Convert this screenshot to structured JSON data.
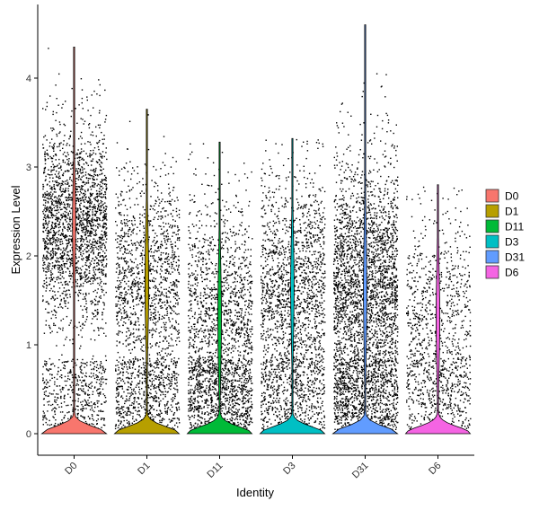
{
  "chart_data": {
    "type": "violin",
    "xlabel": "Identity",
    "ylabel": "Expression Level",
    "ylim": [
      -0.25,
      4.7
    ],
    "y_ticks": [
      0,
      1,
      2,
      3,
      4
    ],
    "grid": false,
    "legend_position": "right",
    "point_color": "#000000",
    "groups": [
      {
        "name": "D0",
        "color": "#F8766D",
        "max": 4.35,
        "zero_density": 1.0,
        "n_points": 2600,
        "mode": 2.35,
        "spread": 0.55,
        "tail_frac": 0.18
      },
      {
        "name": "D1",
        "color": "#B79F00",
        "max": 3.65,
        "zero_density": 0.85,
        "n_points": 1900,
        "mode": 1.7,
        "spread": 0.65,
        "tail_frac": 0.3
      },
      {
        "name": "D11",
        "color": "#00BA38",
        "max": 3.28,
        "zero_density": 0.9,
        "n_points": 2100,
        "mode": 1.3,
        "spread": 0.7,
        "tail_frac": 0.32
      },
      {
        "name": "D3",
        "color": "#00BFC4",
        "max": 3.32,
        "zero_density": 0.95,
        "n_points": 2100,
        "mode": 1.65,
        "spread": 0.65,
        "tail_frac": 0.25
      },
      {
        "name": "D31",
        "color": "#619CFF",
        "max": 4.6,
        "zero_density": 0.95,
        "n_points": 3400,
        "mode": 1.6,
        "spread": 0.75,
        "tail_frac": 0.2
      },
      {
        "name": "D6",
        "color": "#F564E3",
        "max": 2.8,
        "zero_density": 0.9,
        "n_points": 1100,
        "mode": 1.3,
        "spread": 0.65,
        "tail_frac": 0.3
      }
    ]
  },
  "legend": {
    "items": [
      {
        "label": "D0",
        "color": "#F8766D"
      },
      {
        "label": "D1",
        "color": "#B79F00"
      },
      {
        "label": "D11",
        "color": "#00BA38"
      },
      {
        "label": "D3",
        "color": "#00BFC4"
      },
      {
        "label": "D31",
        "color": "#619CFF"
      },
      {
        "label": "D6",
        "color": "#F564E3"
      }
    ]
  }
}
